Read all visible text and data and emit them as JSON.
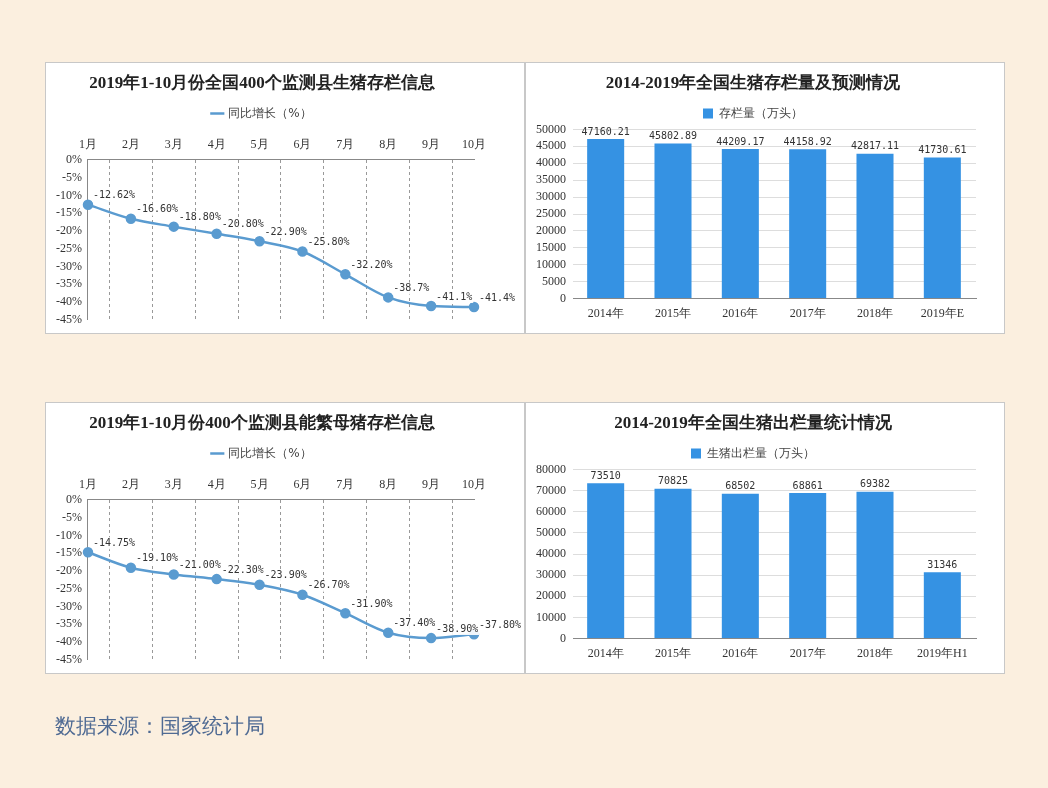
{
  "chart_data": [
    {
      "type": "line",
      "title": "2019年1-10月份全国400个监测县生猪存栏信息",
      "categories": [
        "1月",
        "2月",
        "3月",
        "4月",
        "5月",
        "6月",
        "7月",
        "8月",
        "9月",
        "10月"
      ],
      "series": [
        {
          "name": "同比增长（%）",
          "color": "#5a9bd0",
          "values": [
            -12.62,
            -16.6,
            -18.8,
            -20.8,
            -22.9,
            -25.8,
            -32.2,
            -38.7,
            -41.1,
            -41.4
          ],
          "value_labels": [
            "-12.62%",
            "-16.60%",
            "-18.80%",
            "-20.80%",
            "-22.90%",
            "-25.80%",
            "-32.20%",
            "-38.7%",
            "-41.1%",
            "-41.4%"
          ]
        }
      ],
      "ylim": [
        -45,
        0
      ],
      "yticks": [
        {
          "value": 0,
          "label": "0%"
        },
        {
          "value": -5,
          "label": "-5%"
        },
        {
          "value": -10,
          "label": "-10%"
        },
        {
          "value": -15,
          "label": "-15%"
        },
        {
          "value": -20,
          "label": "-20%"
        },
        {
          "value": -25,
          "label": "-25%"
        },
        {
          "value": -30,
          "label": "-30%"
        },
        {
          "value": -35,
          "label": "-35%"
        },
        {
          "value": -40,
          "label": "-40%"
        },
        {
          "value": -45,
          "label": "-45%"
        }
      ],
      "grid": "x",
      "legend": "top",
      "marker": "circle"
    },
    {
      "type": "bar",
      "title": "2014-2019年全国生猪存栏量及预测情况",
      "categories": [
        "2014年",
        "2015年",
        "2016年",
        "2017年",
        "2018年",
        "2019年E"
      ],
      "series": [
        {
          "name": "存栏量（万头）",
          "color": "#3592e3",
          "values": [
            47160.21,
            45802.89,
            44209.17,
            44158.92,
            42817.11,
            41730.61
          ]
        }
      ],
      "ylim": [
        0,
        50000
      ],
      "yticks": [
        0,
        5000,
        10000,
        15000,
        20000,
        25000,
        30000,
        35000,
        40000,
        45000,
        50000
      ],
      "grid": "y",
      "legend": "top",
      "data_labels": true
    },
    {
      "type": "line",
      "title": "2019年1-10月份400个监测县能繁母猪存栏信息",
      "categories": [
        "1月",
        "2月",
        "3月",
        "4月",
        "5月",
        "6月",
        "7月",
        "8月",
        "9月",
        "10月"
      ],
      "series": [
        {
          "name": "同比增长（%）",
          "color": "#5a9bd0",
          "values": [
            -14.75,
            -19.1,
            -21.0,
            -22.3,
            -23.9,
            -26.7,
            -31.9,
            -37.4,
            -38.9,
            -37.8
          ],
          "value_labels": [
            "-14.75%",
            "-19.10%",
            "-21.00%",
            "-22.30%",
            "-23.90%",
            "-26.70%",
            "-31.90%",
            "-37.40%",
            "-38.90%",
            "-37.80%"
          ]
        }
      ],
      "ylim": [
        -45,
        0
      ],
      "yticks": [
        {
          "value": 0,
          "label": "0%"
        },
        {
          "value": -5,
          "label": "-5%"
        },
        {
          "value": -10,
          "label": "-10%"
        },
        {
          "value": -15,
          "label": "-15%"
        },
        {
          "value": -20,
          "label": "-20%"
        },
        {
          "value": -25,
          "label": "-25%"
        },
        {
          "value": -30,
          "label": "-30%"
        },
        {
          "value": -35,
          "label": "-35%"
        },
        {
          "value": -40,
          "label": "-40%"
        },
        {
          "value": -45,
          "label": "-45%"
        }
      ],
      "grid": "x",
      "legend": "top",
      "marker": "circle"
    },
    {
      "type": "bar",
      "title": "2014-2019年全国生猪出栏量统计情况",
      "categories": [
        "2014年",
        "2015年",
        "2016年",
        "2017年",
        "2018年",
        "2019年H1"
      ],
      "series": [
        {
          "name": "生猪出栏量（万头）",
          "color": "#3592e3",
          "values": [
            73510,
            70825,
            68502,
            68861,
            69382,
            31346
          ]
        }
      ],
      "ylim": [
        0,
        80000
      ],
      "yticks": [
        0,
        10000,
        20000,
        30000,
        40000,
        50000,
        60000,
        70000,
        80000
      ],
      "grid": "y",
      "legend": "top",
      "data_labels": true,
      "annotations": [
        "数据来源：国家统计局"
      ]
    }
  ]
}
